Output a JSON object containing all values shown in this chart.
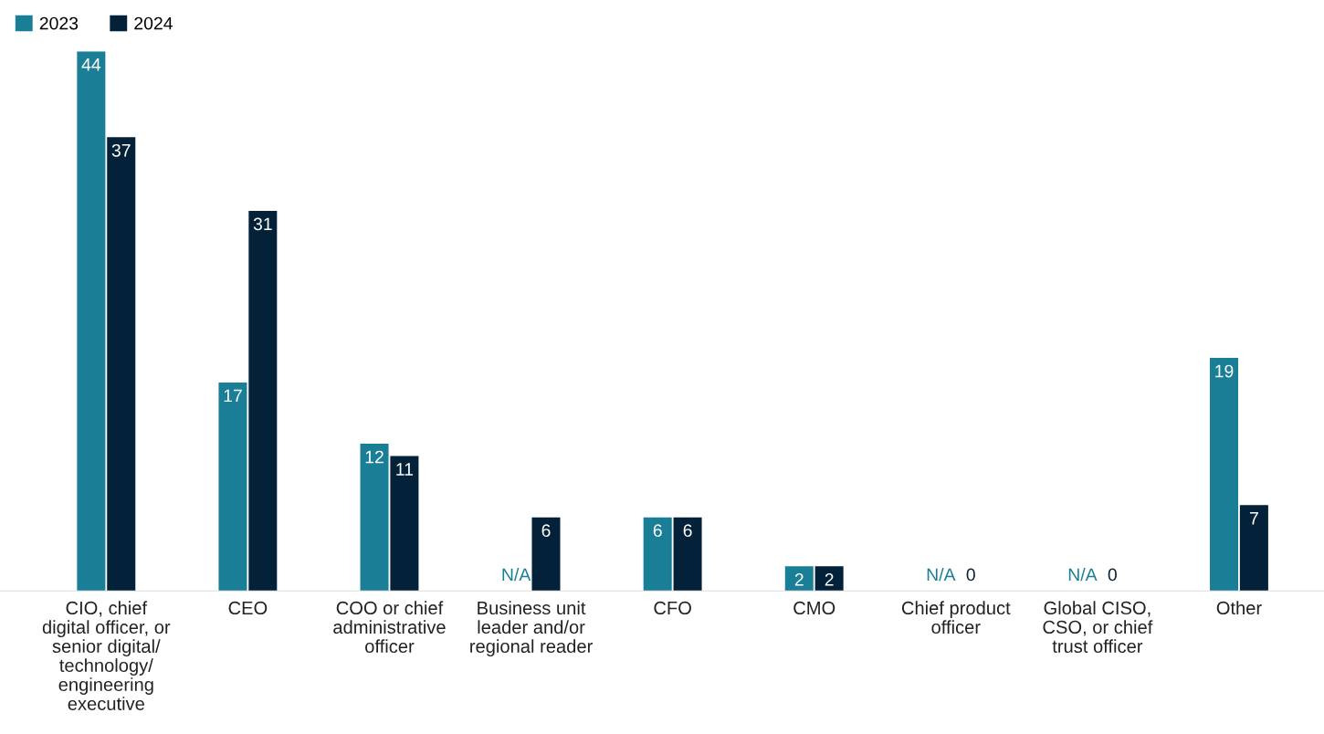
{
  "chart_data": {
    "type": "bar",
    "categories": [
      "CIO, chief\ndigital officer, or\nsenior digital/\ntechnology/\nengineering\nexecutive",
      "CEO",
      "COO or chief\nadministrative\nofficer",
      "Business unit\nleader and/or\nregional reader",
      "CFO",
      "CMO",
      "Chief product\nofficer",
      "Global CISO,\nCSO, or chief\ntrust officer",
      "Other"
    ],
    "series": [
      {
        "name": "2023",
        "color": "#1a7f96",
        "values": [
          44,
          17,
          12,
          null,
          6,
          2,
          null,
          null,
          19
        ],
        "value_labels": [
          "44",
          "17",
          "12",
          "N/A",
          "6",
          "2",
          "N/A",
          "N/A",
          "19"
        ]
      },
      {
        "name": "2024",
        "color": "#03223a",
        "values": [
          37,
          31,
          11,
          6,
          6,
          2,
          0,
          0,
          7
        ],
        "value_labels": [
          "37",
          "31",
          "11",
          "6",
          "6",
          "2",
          "0",
          "0",
          "7"
        ]
      }
    ],
    "legend": "top left",
    "grid": false,
    "tick_labels": "x"
  }
}
